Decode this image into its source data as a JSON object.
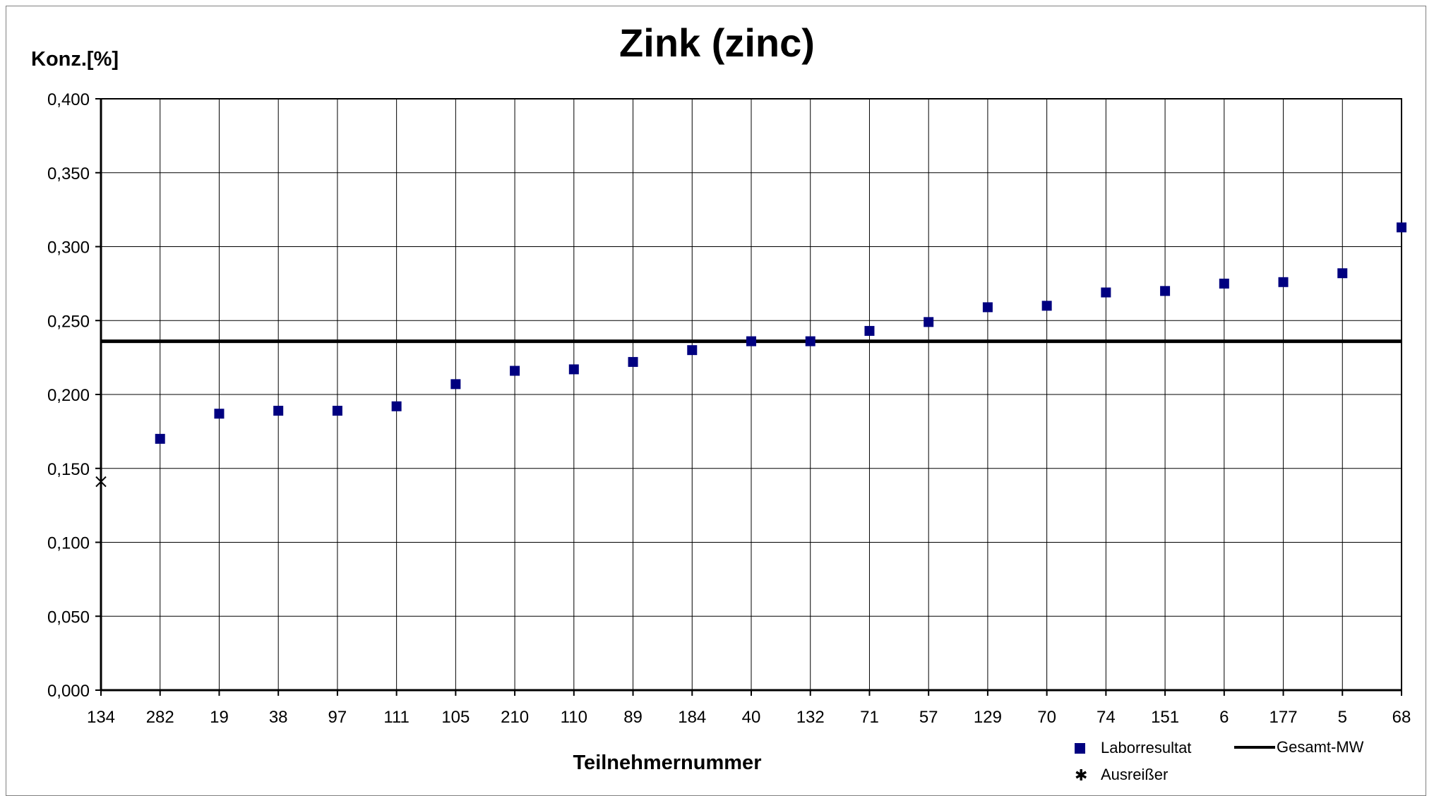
{
  "chart_data": {
    "type": "scatter",
    "title": "Zink (zinc)",
    "ylabel": "Konz.[%]",
    "xlabel": "Teilnehmernummer",
    "ylim": [
      0,
      0.4
    ],
    "y_ticks": [
      "0,000",
      "0,050",
      "0,100",
      "0,150",
      "0,200",
      "0,250",
      "0,300",
      "0,350",
      "0,400"
    ],
    "grid": true,
    "categories": [
      "134",
      "282",
      "19",
      "38",
      "97",
      "111",
      "105",
      "210",
      "110",
      "89",
      "184",
      "40",
      "132",
      "71",
      "57",
      "129",
      "70",
      "74",
      "151",
      "6",
      "177",
      "5",
      "68"
    ],
    "series": [
      {
        "name": "Laborresultat",
        "marker": "square",
        "color": "#000080",
        "points": [
          {
            "x": "282",
            "y": 0.17
          },
          {
            "x": "19",
            "y": 0.187
          },
          {
            "x": "38",
            "y": 0.189
          },
          {
            "x": "97",
            "y": 0.189
          },
          {
            "x": "111",
            "y": 0.192
          },
          {
            "x": "105",
            "y": 0.207
          },
          {
            "x": "210",
            "y": 0.216
          },
          {
            "x": "110",
            "y": 0.217
          },
          {
            "x": "89",
            "y": 0.222
          },
          {
            "x": "184",
            "y": 0.23
          },
          {
            "x": "40",
            "y": 0.236
          },
          {
            "x": "132",
            "y": 0.236
          },
          {
            "x": "71",
            "y": 0.243
          },
          {
            "x": "57",
            "y": 0.249
          },
          {
            "x": "129",
            "y": 0.259
          },
          {
            "x": "70",
            "y": 0.26
          },
          {
            "x": "74",
            "y": 0.269
          },
          {
            "x": "151",
            "y": 0.27
          },
          {
            "x": "6",
            "y": 0.275
          },
          {
            "x": "177",
            "y": 0.276
          },
          {
            "x": "5",
            "y": 0.282
          },
          {
            "x": "68",
            "y": 0.313
          }
        ]
      },
      {
        "name": "Ausreißer",
        "marker": "star",
        "color": "#000000",
        "points": [
          {
            "x": "134",
            "y": 0.141
          }
        ]
      },
      {
        "name": "Gesamt-MW",
        "type": "hline",
        "color": "#000000",
        "y": 0.236
      }
    ],
    "legend_position": "bottom-right"
  }
}
